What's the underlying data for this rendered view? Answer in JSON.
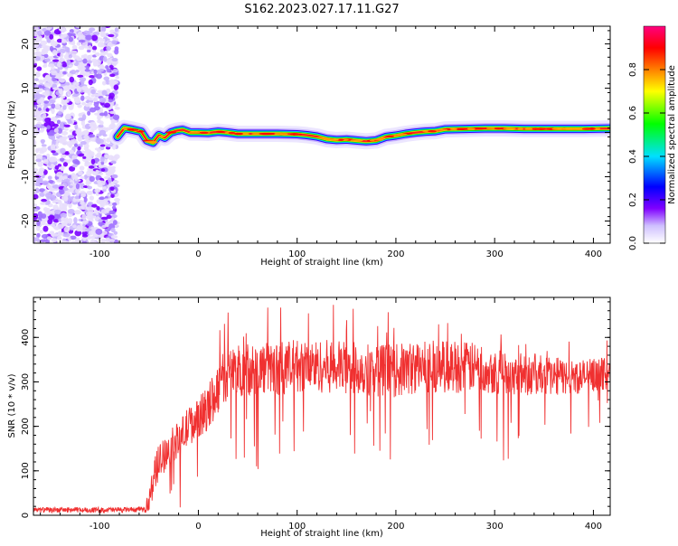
{
  "title": "S162.2023.027.17.11.G27",
  "chart_data": [
    {
      "type": "heatmap",
      "xlabel": "Height of straight line (km)",
      "ylabel": "Frequency (Hz)",
      "xlim": [
        -167,
        417
      ],
      "ylim": [
        -25,
        24
      ],
      "x_ticks": [
        -100,
        0,
        100,
        200,
        300,
        400
      ],
      "y_ticks": [
        -20,
        -10,
        0,
        10,
        20
      ],
      "noise_region_x": [
        -167,
        -82
      ],
      "ridge": {
        "x": [
          -82,
          -75,
          -66,
          -58,
          -52,
          -46,
          -40,
          -34,
          -28,
          -22,
          -16,
          -8,
          0,
          10,
          20,
          30,
          40,
          60,
          80,
          100,
          110,
          120,
          130,
          140,
          150,
          160,
          170,
          180,
          190,
          200,
          210,
          220,
          230,
          240,
          250,
          270,
          290,
          310,
          330,
          360,
          390,
          417
        ],
        "y": [
          -1.0,
          1.0,
          0.6,
          0.2,
          -1.8,
          -2.3,
          -0.6,
          -1.2,
          0.0,
          0.4,
          0.6,
          0.0,
          0.0,
          -0.1,
          0.2,
          0.0,
          -0.3,
          -0.3,
          -0.3,
          -0.4,
          -0.6,
          -0.9,
          -1.5,
          -1.7,
          -1.6,
          -1.8,
          -2.0,
          -1.8,
          -1.0,
          -0.7,
          -0.3,
          0.0,
          0.2,
          0.3,
          0.7,
          0.8,
          0.9,
          0.9,
          0.8,
          0.8,
          0.8,
          0.9
        ]
      },
      "colorbar": {
        "label": "Normalized spectral amplitude",
        "range": [
          0,
          1
        ],
        "ticks": [
          "0.0",
          "0.2",
          "0.4",
          "0.6",
          "0.8"
        ],
        "colors": [
          "#ffffff",
          "#6a00ff",
          "#0000ff",
          "#00e0ff",
          "#00ff00",
          "#ffff00",
          "#ff8000",
          "#ff0000",
          "#ff0080"
        ]
      }
    },
    {
      "type": "line",
      "xlabel": "Height of straight line (km)",
      "ylabel": "SNR (10 * v/v)",
      "xlim": [
        -167,
        417
      ],
      "ylim": [
        0,
        490
      ],
      "x_ticks": [
        -100,
        0,
        100,
        200,
        300,
        400
      ],
      "y_ticks": [
        0,
        100,
        200,
        300,
        400
      ],
      "color": "#f03030",
      "envelope": {
        "x": [
          -167,
          -100,
          -55,
          -50,
          -45,
          -40,
          -30,
          -20,
          -10,
          0,
          10,
          20,
          30,
          50,
          80,
          100,
          130,
          160,
          200,
          230,
          260,
          290,
          320,
          350,
          380,
          417
        ],
        "mean": [
          12,
          12,
          13,
          30,
          90,
          120,
          150,
          170,
          200,
          220,
          240,
          290,
          320,
          330,
          330,
          335,
          335,
          330,
          325,
          335,
          335,
          330,
          320,
          315,
          310,
          320
        ],
        "spread": [
          6,
          6,
          6,
          25,
          40,
          40,
          40,
          40,
          45,
          45,
          50,
          60,
          60,
          60,
          60,
          60,
          60,
          60,
          60,
          60,
          60,
          55,
          50,
          45,
          40,
          35
        ]
      }
    }
  ]
}
